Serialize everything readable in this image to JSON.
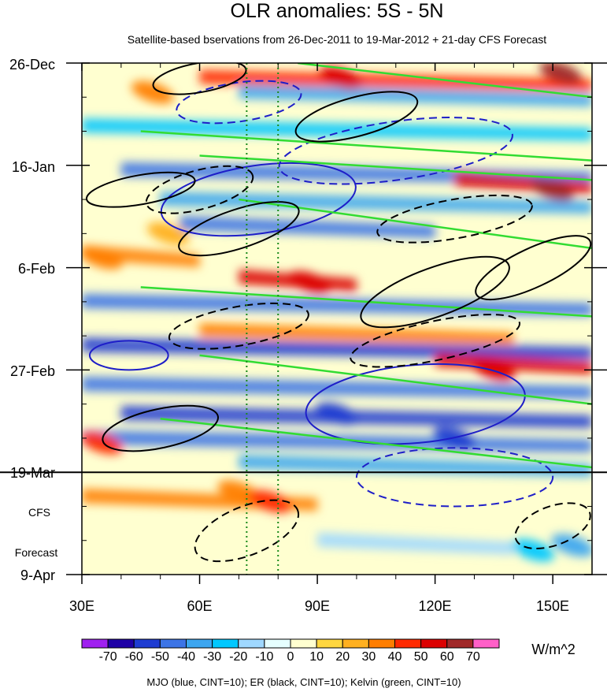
{
  "chart_data": {
    "type": "heatmap",
    "title": "OLR anomalies: 5S - 5N",
    "subtitle": "Satellite-based bservations from 26-Dec-2011 to 19-Mar-2012 + 21-day CFS Forecast",
    "x_axis": {
      "label": "",
      "range": [
        30,
        160
      ],
      "ticks": [
        30,
        60,
        90,
        120,
        150
      ],
      "tick_labels": [
        "30E",
        "60E",
        "90E",
        "120E",
        "150E"
      ],
      "minor_ticks": [
        40,
        50,
        70,
        80,
        100,
        110,
        130,
        140
      ]
    },
    "y_axis": {
      "label": "",
      "range_days": [
        0,
        105
      ],
      "ticks_days": [
        0,
        21,
        42,
        63,
        84,
        105
      ],
      "tick_labels": [
        "26-Dec",
        "16-Jan",
        "6-Feb",
        "27-Feb",
        "19-Mar",
        "9-Apr"
      ],
      "inverted": true
    },
    "forecast_label": [
      "CFS",
      "Forecast"
    ],
    "observation_end_day": 84,
    "reference_lines_lon": [
      72,
      80
    ],
    "colorbar": {
      "levels": [
        -70,
        -60,
        -50,
        -40,
        -30,
        -20,
        -10,
        0,
        10,
        20,
        30,
        40,
        50,
        60,
        70
      ],
      "level_labels": [
        "-70",
        "-60",
        "-50",
        "-40",
        "-30",
        "-20",
        "-10",
        "0",
        "10",
        "20",
        "30",
        "40",
        "50",
        "60",
        "70"
      ],
      "colors": [
        "#a020f0",
        "#1e00a6",
        "#1e3cd2",
        "#3c74e6",
        "#3ca6f0",
        "#00c8ff",
        "#9fd8ff",
        "#e6ffff",
        "#ffffd0",
        "#ffd740",
        "#ffb020",
        "#ff7e00",
        "#ff2a00",
        "#dc0000",
        "#a02828",
        "#ff60c8"
      ],
      "units": "W/m^2"
    },
    "overlays": {
      "caption": "MJO (blue, CINT=10); ER (black, CINT=10); Kelvin (green, CINT=10)",
      "mjo": {
        "color": "#1e1ec8",
        "cint": 10
      },
      "er": {
        "color": "#000000",
        "cint": 10
      },
      "kelvin": {
        "color": "#32dc32",
        "cint": 10
      }
    },
    "bands": [
      {
        "day": 3,
        "lon_start": 60,
        "lon_end": 160,
        "value": 40
      },
      {
        "day": 6,
        "lon_start": 70,
        "lon_end": 160,
        "value": -40
      },
      {
        "day": 13,
        "lon_start": 30,
        "lon_end": 160,
        "value": -30
      },
      {
        "day": 22,
        "lon_start": 40,
        "lon_end": 160,
        "value": -50
      },
      {
        "day": 24,
        "lon_start": 125,
        "lon_end": 160,
        "value": 50
      },
      {
        "day": 28,
        "lon_start": 50,
        "lon_end": 160,
        "value": -40
      },
      {
        "day": 33,
        "lon_start": 55,
        "lon_end": 120,
        "value": -50
      },
      {
        "day": 39,
        "lon_start": 30,
        "lon_end": 60,
        "value": 30
      },
      {
        "day": 44,
        "lon_start": 70,
        "lon_end": 100,
        "value": 50
      },
      {
        "day": 49,
        "lon_start": 30,
        "lon_end": 160,
        "value": -50
      },
      {
        "day": 55,
        "lon_start": 60,
        "lon_end": 140,
        "value": 30
      },
      {
        "day": 58,
        "lon_start": 30,
        "lon_end": 160,
        "value": -60
      },
      {
        "day": 61,
        "lon_start": 120,
        "lon_end": 160,
        "value": 50
      },
      {
        "day": 66,
        "lon_start": 30,
        "lon_end": 160,
        "value": -50
      },
      {
        "day": 72,
        "lon_start": 40,
        "lon_end": 160,
        "value": -60
      },
      {
        "day": 77,
        "lon_start": 30,
        "lon_end": 160,
        "value": -50
      },
      {
        "day": 82,
        "lon_start": 70,
        "lon_end": 160,
        "value": -40
      },
      {
        "day": 89,
        "lon_start": 30,
        "lon_end": 90,
        "value": 30
      },
      {
        "day": 98,
        "lon_start": 90,
        "lon_end": 140,
        "value": -20
      }
    ],
    "blobs": [
      {
        "lon": 48,
        "day": 6,
        "value": 30
      },
      {
        "lon": 52,
        "day": 35,
        "value": 20
      },
      {
        "lon": 35,
        "day": 40,
        "value": 30
      },
      {
        "lon": 88,
        "day": 45,
        "value": 50
      },
      {
        "lon": 96,
        "day": 3,
        "value": 50
      },
      {
        "lon": 152,
        "day": 2,
        "value": 60
      },
      {
        "lon": 150,
        "day": 26,
        "value": 60
      },
      {
        "lon": 135,
        "day": 63,
        "value": 50
      },
      {
        "lon": 70,
        "day": 88,
        "value": 30
      },
      {
        "lon": 78,
        "day": 90,
        "value": 40
      },
      {
        "lon": 35,
        "day": 78,
        "value": 40
      },
      {
        "lon": 95,
        "day": 72,
        "value": -60
      },
      {
        "lon": 125,
        "day": 77,
        "value": -60
      },
      {
        "lon": 145,
        "day": 100,
        "value": -30
      },
      {
        "lon": 155,
        "day": 99,
        "value": -40
      }
    ],
    "er_contours": [
      {
        "lon": 60,
        "day": 3,
        "dlon": 12,
        "dday": 3,
        "rot": -10,
        "dashed": false
      },
      {
        "lon": 100,
        "day": 11,
        "dlon": 16,
        "dday": 4,
        "rot": -15,
        "dashed": false
      },
      {
        "lon": 45,
        "day": 26,
        "dlon": 14,
        "dday": 3,
        "rot": -10,
        "dashed": false
      },
      {
        "lon": 70,
        "day": 34,
        "dlon": 16,
        "dday": 4,
        "rot": -18,
        "dashed": false
      },
      {
        "lon": 120,
        "day": 47,
        "dlon": 20,
        "dday": 5,
        "rot": -20,
        "dashed": false
      },
      {
        "lon": 145,
        "day": 42,
        "dlon": 16,
        "dday": 4,
        "rot": -25,
        "dashed": false
      },
      {
        "lon": 50,
        "day": 75,
        "dlon": 15,
        "dday": 4,
        "rot": -12,
        "dashed": false
      },
      {
        "lon": 60,
        "day": 26,
        "dlon": 14,
        "dday": 4,
        "rot": -15,
        "dashed": true
      },
      {
        "lon": 125,
        "day": 32,
        "dlon": 20,
        "dday": 4,
        "rot": -10,
        "dashed": true
      },
      {
        "lon": 70,
        "day": 54,
        "dlon": 18,
        "dday": 4,
        "rot": -10,
        "dashed": true
      },
      {
        "lon": 120,
        "day": 57,
        "dlon": 22,
        "dday": 4,
        "rot": -12,
        "dashed": true
      },
      {
        "lon": 72,
        "day": 96,
        "dlon": 14,
        "dday": 5,
        "rot": -22,
        "dashed": true
      },
      {
        "lon": 150,
        "day": 95,
        "dlon": 10,
        "dday": 4,
        "rot": -20,
        "dashed": true
      }
    ],
    "mjo_contours": [
      {
        "lon": 70,
        "day": 8,
        "dlon": 16,
        "dday": 4,
        "rot": -8,
        "dashed": true
      },
      {
        "lon": 75,
        "day": 28,
        "dlon": 25,
        "dday": 7,
        "rot": -8,
        "dashed": false
      },
      {
        "lon": 42,
        "day": 60,
        "dlon": 10,
        "dday": 3,
        "rot": 0,
        "dashed": false
      },
      {
        "lon": 115,
        "day": 70,
        "dlon": 28,
        "dday": 8,
        "rot": -5,
        "dashed": false
      },
      {
        "lon": 125,
        "day": 85,
        "dlon": 25,
        "dday": 6,
        "rot": 0,
        "dashed": true
      },
      {
        "lon": 110,
        "day": 18,
        "dlon": 30,
        "dday": 6,
        "rot": -8,
        "dashed": true
      }
    ],
    "kelvin_lines": [
      {
        "lon0": 85,
        "day0": 0,
        "lon1": 160,
        "day1": 7
      },
      {
        "lon0": 45,
        "day0": 14,
        "lon1": 160,
        "day1": 20
      },
      {
        "lon0": 60,
        "day0": 19,
        "lon1": 160,
        "day1": 24
      },
      {
        "lon0": 70,
        "day0": 28,
        "lon1": 160,
        "day1": 38
      },
      {
        "lon0": 45,
        "day0": 46,
        "lon1": 160,
        "day1": 52
      },
      {
        "lon0": 60,
        "day0": 60,
        "lon1": 160,
        "day1": 70
      },
      {
        "lon0": 50,
        "day0": 73,
        "lon1": 160,
        "day1": 83
      }
    ]
  }
}
